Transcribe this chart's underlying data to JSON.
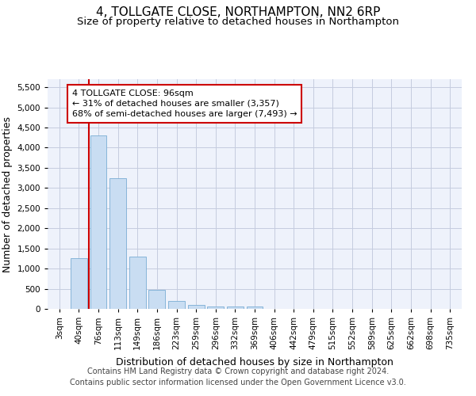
{
  "title": "4, TOLLGATE CLOSE, NORTHAMPTON, NN2 6RP",
  "subtitle": "Size of property relative to detached houses in Northampton",
  "xlabel": "Distribution of detached houses by size in Northampton",
  "ylabel": "Number of detached properties",
  "bar_color": "#c9ddf2",
  "bar_edge_color": "#7aadd4",
  "categories": [
    "3sqm",
    "40sqm",
    "76sqm",
    "113sqm",
    "149sqm",
    "186sqm",
    "223sqm",
    "259sqm",
    "296sqm",
    "332sqm",
    "369sqm",
    "406sqm",
    "442sqm",
    "479sqm",
    "515sqm",
    "552sqm",
    "589sqm",
    "625sqm",
    "662sqm",
    "698sqm",
    "735sqm"
  ],
  "values": [
    0,
    1250,
    4300,
    3250,
    1300,
    480,
    190,
    100,
    60,
    50,
    50,
    0,
    0,
    0,
    0,
    0,
    0,
    0,
    0,
    0,
    0
  ],
  "ylim": [
    0,
    5700
  ],
  "yticks": [
    0,
    500,
    1000,
    1500,
    2000,
    2500,
    3000,
    3500,
    4000,
    4500,
    5000,
    5500
  ],
  "vline_x": 1.5,
  "vline_color": "#cc0000",
  "annotation_line1": "4 TOLLGATE CLOSE: 96sqm",
  "annotation_line2": "← 31% of detached houses are smaller (3,357)",
  "annotation_line3": "68% of semi-detached houses are larger (7,493) →",
  "footer_line1": "Contains HM Land Registry data © Crown copyright and database right 2024.",
  "footer_line2": "Contains public sector information licensed under the Open Government Licence v3.0.",
  "bg_color": "#eef2fb",
  "grid_color": "#c5ccdf",
  "title_fontsize": 11,
  "subtitle_fontsize": 9.5,
  "axis_label_fontsize": 9,
  "tick_fontsize": 7.5,
  "annot_fontsize": 8,
  "footer_fontsize": 7
}
